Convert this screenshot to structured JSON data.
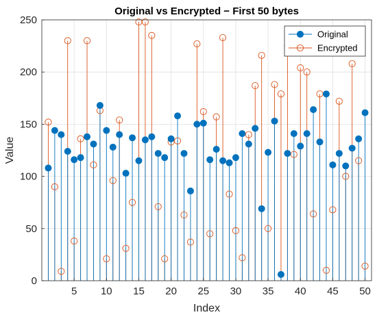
{
  "chart_data": {
    "type": "stem",
    "title": "Original vs Encrypted − First 50 bytes",
    "xlabel": "Index",
    "ylabel": "Value",
    "xlim": [
      0,
      51
    ],
    "ylim": [
      0,
      250
    ],
    "xticks": [
      5,
      10,
      15,
      20,
      25,
      30,
      35,
      40,
      45,
      50
    ],
    "yticks": [
      0,
      50,
      100,
      150,
      200,
      250
    ],
    "grid": true,
    "legend_position": "top-right",
    "x": [
      1,
      2,
      3,
      4,
      5,
      6,
      7,
      8,
      9,
      10,
      11,
      12,
      13,
      14,
      15,
      16,
      17,
      18,
      19,
      20,
      21,
      22,
      23,
      24,
      25,
      26,
      27,
      28,
      29,
      30,
      31,
      32,
      33,
      34,
      35,
      36,
      37,
      38,
      39,
      40,
      41,
      42,
      43,
      44,
      45,
      46,
      47,
      48,
      49,
      50
    ],
    "series": [
      {
        "name": "Original",
        "color": "#0072BD",
        "marker": "filled-circle",
        "values": [
          108,
          144,
          140,
          124,
          116,
          118,
          138,
          131,
          168,
          144,
          128,
          140,
          103,
          137,
          115,
          135,
          138,
          122,
          118,
          136,
          158,
          122,
          86,
          150,
          151,
          116,
          126,
          115,
          113,
          118,
          141,
          131,
          146,
          69,
          123,
          153,
          6,
          122,
          141,
          129,
          141,
          164,
          133,
          179,
          111,
          122,
          110,
          127,
          136,
          161
        ]
      },
      {
        "name": "Encrypted",
        "color": "#D95319",
        "marker": "open-circle",
        "values": [
          152,
          90,
          9,
          230,
          38,
          136,
          230,
          111,
          163,
          21,
          96,
          154,
          31,
          75,
          248,
          248,
          235,
          71,
          21,
          133,
          134,
          63,
          37,
          227,
          162,
          45,
          157,
          233,
          83,
          48,
          22,
          140,
          187,
          216,
          50,
          188,
          179,
          225,
          121,
          204,
          200,
          64,
          179,
          10,
          68,
          172,
          100,
          208,
          115,
          14
        ]
      }
    ]
  }
}
